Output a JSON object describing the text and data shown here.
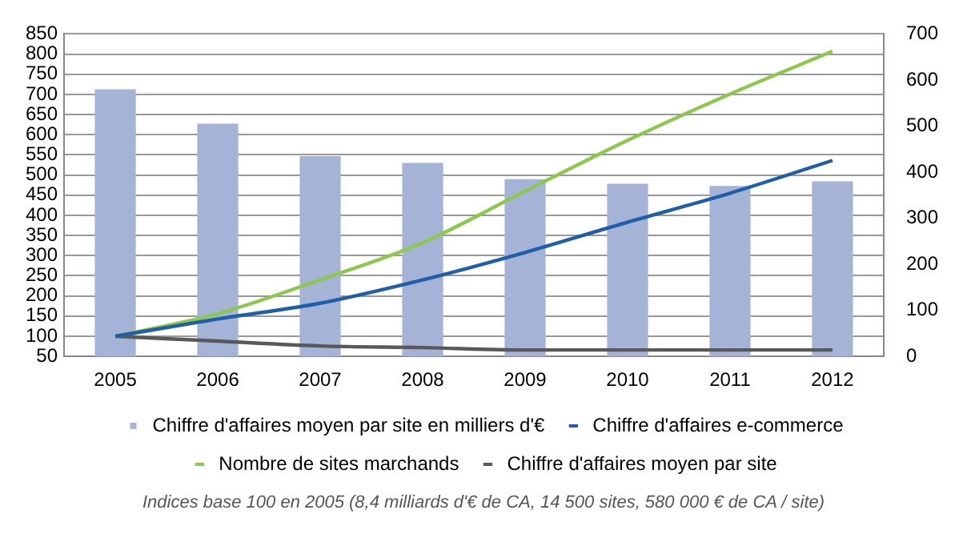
{
  "chart_data": {
    "type": "bar",
    "categories": [
      "2005",
      "2006",
      "2007",
      "2008",
      "2009",
      "2010",
      "2011",
      "2012"
    ],
    "series": [
      {
        "name": "Chiffre d'affaires moyen par site en milliers d'€",
        "axis": "y2",
        "color": "#a5b3d6",
        "values": [
          580,
          505,
          435,
          420,
          385,
          375,
          370,
          380
        ]
      },
      {
        "name": "Chiffre d'affaires e-commerce",
        "type": "line",
        "color": "#1f5fa8",
        "values": [
          100,
          143,
          182,
          240,
          308,
          383,
          455,
          536
        ]
      },
      {
        "name": "Nombre de sites marchands",
        "type": "line",
        "color": "#8cc84b",
        "values": [
          100,
          156,
          240,
          332,
          460,
          586,
          701,
          807
        ]
      },
      {
        "name": "Chiffre d'affaires moyen par site",
        "type": "line",
        "color": "#595959",
        "values": [
          100,
          88,
          76,
          72,
          66,
          66,
          66,
          66
        ]
      }
    ],
    "ylim": [
      50,
      850
    ],
    "yticks": [
      50,
      100,
      150,
      200,
      250,
      300,
      350,
      400,
      450,
      500,
      550,
      600,
      650,
      700,
      750,
      800,
      850
    ],
    "y2lim": [
      0,
      700
    ],
    "y2ticks": [
      0,
      100,
      200,
      300,
      400,
      500,
      600,
      700
    ],
    "grid": "y",
    "legend": "bottom",
    "marker": "none",
    "line_style": "solid",
    "annotations": [
      "Indices base 100  en 2005 (8,4 milliards d'€ de CA, 14 500 sites, 580 000 € de CA / site)"
    ]
  }
}
